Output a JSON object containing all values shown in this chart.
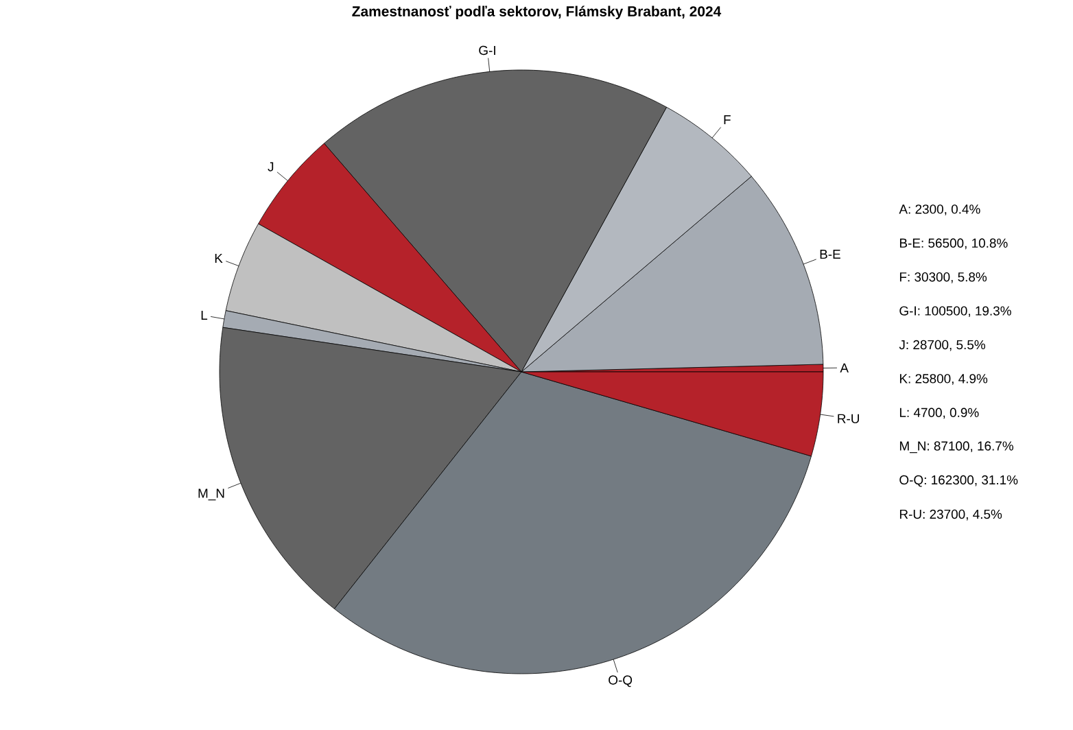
{
  "chart_data": {
    "type": "pie",
    "title": "Zamestnanosť podľa sektorov, Flámsky Brabant, 2024",
    "categories": [
      "A",
      "B-E",
      "F",
      "G-I",
      "J",
      "K",
      "L",
      "M_N",
      "O-Q",
      "R-U"
    ],
    "values": [
      0.4,
      10.8,
      5.8,
      19.3,
      5.5,
      4.9,
      0.9,
      16.7,
      31.1,
      4.5
    ],
    "colors": [
      "#b5222a",
      "#a5abb3",
      "#b3b8bf",
      "#636363",
      "#b5222a",
      "#c0c0c0",
      "#a5abb3",
      "#636363",
      "#737b82",
      "#b5222a"
    ],
    "annotations": [
      "A: 2300, 0.4%",
      "B-E: 56500, 10.8%",
      "F: 30300, 5.8%",
      "G-I: 100500, 19.3%",
      "J: 28700, 5.5%",
      "K: 25800, 4.9%",
      "L: 4700, 0.9%",
      "M_N: 87100, 16.7%",
      "O-Q: 162300, 31.1%",
      "R-U: 23700, 4.5%"
    ]
  }
}
